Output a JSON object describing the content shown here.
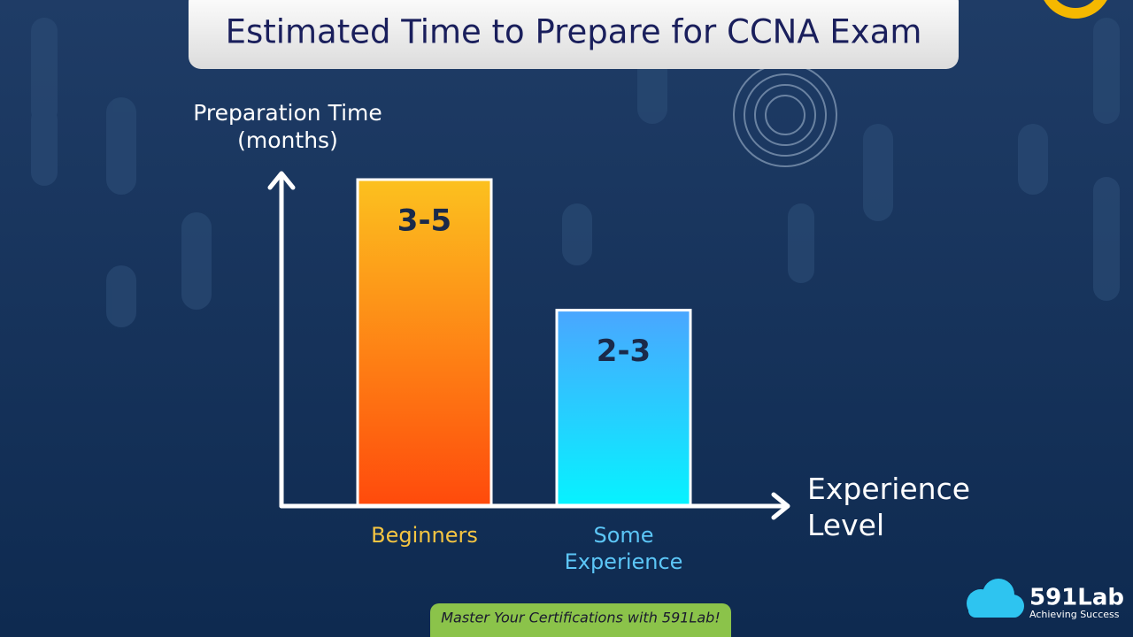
{
  "chart_data": {
    "type": "bar",
    "title": "Estimated Time to Prepare for CCNA Exam",
    "y_label": "Preparation Time (months)",
    "x_label": "Experience Level",
    "categories": [
      "Beginners",
      "Some Experience"
    ],
    "values": [
      [
        3,
        5
      ],
      [
        2,
        3
      ]
    ],
    "value_labels": [
      "3-5",
      "2-3"
    ],
    "colors": [
      [
        "#fcc11f",
        "#ff4a0c"
      ],
      [
        "#4aa6ff",
        "#06f3ff"
      ]
    ],
    "label_colors": [
      "#f5c542",
      "#5cc6f7"
    ]
  },
  "banner": "Master Your Certifications with 591Lab!",
  "logo": {
    "name": "591Lab",
    "tagline": "Achieving Success"
  }
}
